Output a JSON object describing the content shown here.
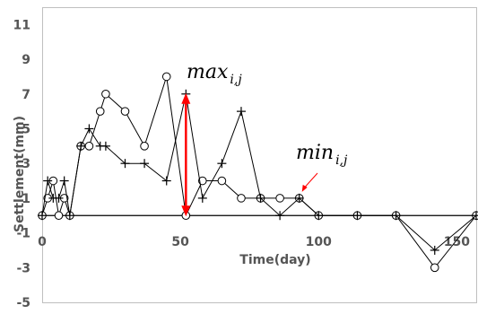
{
  "chart_data": {
    "type": "line",
    "xlabel": "Time(day)",
    "ylabel": "Settlement(mm)",
    "xlim": [
      0,
      157
    ],
    "ylim": [
      -5,
      12
    ],
    "x_ticks": [
      0,
      50,
      100,
      150
    ],
    "y_ticks": [
      -5,
      -3,
      -1,
      1,
      3,
      5,
      7,
      9,
      11
    ],
    "grid": false,
    "series": [
      {
        "marker": "circle",
        "color": "#000000",
        "x": [
          0,
          2,
          4,
          6,
          8,
          10,
          14,
          17,
          21,
          23,
          30,
          37,
          45,
          52,
          58,
          65,
          72,
          79,
          86,
          93,
          100,
          114,
          128,
          142,
          157
        ],
        "y": [
          0,
          1,
          2,
          0,
          1,
          0,
          4,
          4,
          6,
          7,
          6,
          4,
          8,
          0,
          2,
          2,
          1,
          1,
          1,
          1,
          0,
          0,
          0,
          -3,
          0
        ]
      },
      {
        "marker": "plus",
        "color": "#000000",
        "x": [
          0,
          2,
          4,
          6,
          8,
          10,
          14,
          17,
          21,
          23,
          30,
          37,
          45,
          52,
          58,
          65,
          72,
          79,
          86,
          93,
          100,
          114,
          128,
          142,
          157
        ],
        "y": [
          0,
          2,
          1,
          1,
          2,
          0,
          4,
          5,
          4,
          4,
          3,
          3,
          2,
          7,
          1,
          3,
          6,
          1,
          0,
          1,
          0,
          0,
          0,
          -2,
          0
        ]
      }
    ],
    "annotations": {
      "max_label": {
        "base": "max",
        "sub": "i,j"
      },
      "min_label": {
        "base": "min",
        "sub": "i,j"
      },
      "range_arrow": {
        "x": 52,
        "y_from": 0,
        "y_to": 7,
        "color": "#ff0000"
      },
      "min_pointer": {
        "to_x": 93,
        "to_y": 1,
        "color": "#ff0000"
      }
    }
  }
}
